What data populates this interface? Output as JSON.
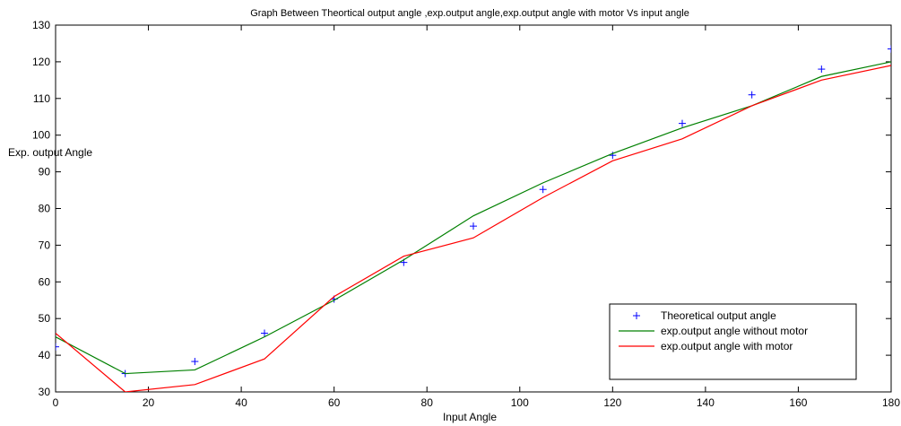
{
  "chart_data": {
    "type": "line",
    "title": "Graph Between Theortical output angle ,exp.output angle,exp.output angle with motor Vs input angle",
    "xlabel": "Input Angle",
    "ylabel": "Exp. output Angle",
    "xlim": [
      0,
      180
    ],
    "ylim": [
      30,
      130
    ],
    "xticks": [
      0,
      20,
      40,
      60,
      80,
      100,
      120,
      140,
      160,
      180
    ],
    "yticks": [
      30,
      40,
      50,
      60,
      70,
      80,
      90,
      100,
      110,
      120,
      130
    ],
    "grid": false,
    "legend_position": "bottom-right",
    "series": [
      {
        "name": "Theoretical output angle",
        "style": "markers-plus",
        "color": "#0000ff",
        "x": [
          0,
          15,
          30,
          45,
          60,
          75,
          90,
          105,
          120,
          135,
          150,
          165,
          180
        ],
        "y": [
          42.3,
          35,
          38.3,
          46,
          55.3,
          65.3,
          75.2,
          85.2,
          94.5,
          103.2,
          111,
          118,
          123.5
        ]
      },
      {
        "name": "exp.output angle without motor",
        "style": "line",
        "color": "#008000",
        "x": [
          0,
          15,
          30,
          45,
          60,
          75,
          90,
          105,
          120,
          135,
          150,
          165,
          180
        ],
        "y": [
          45,
          35,
          36,
          45,
          55,
          66,
          78,
          87,
          95,
          102,
          108,
          116,
          120
        ]
      },
      {
        "name": "exp.output angle with motor",
        "style": "line",
        "color": "#ff0000",
        "x": [
          0,
          15,
          30,
          45,
          60,
          75,
          90,
          105,
          120,
          135,
          150,
          165,
          180
        ],
        "y": [
          46,
          30,
          32,
          39,
          56,
          67,
          72,
          83,
          93,
          99,
          108,
          115,
          119
        ]
      }
    ]
  }
}
